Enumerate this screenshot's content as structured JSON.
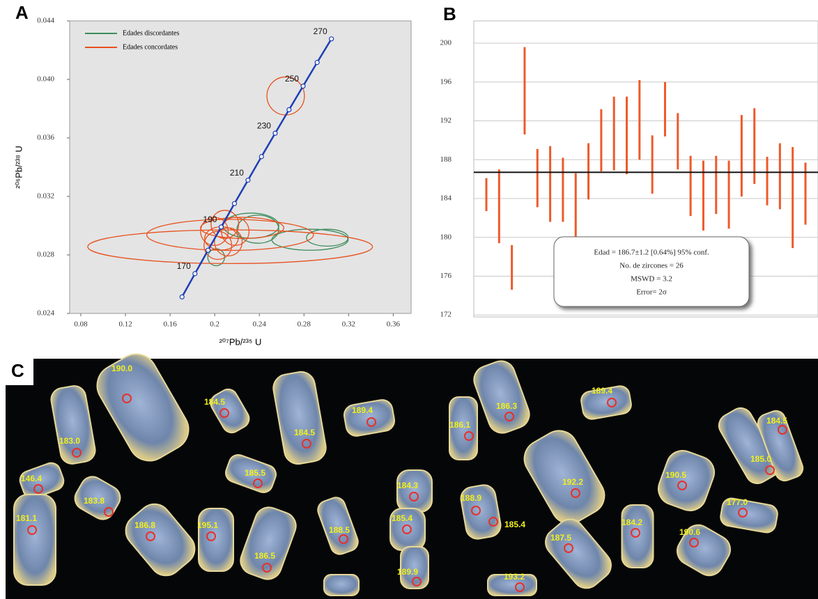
{
  "chart_data": [
    {
      "type": "concordia",
      "panel_label": "A",
      "x_label": "²⁰⁷Pb/²³⁵ U",
      "y_label": "²⁰⁶Pb/²³⁸ U",
      "xlim": [
        0.07,
        0.376
      ],
      "ylim": [
        0.024,
        0.044
      ],
      "xticks": [
        0.08,
        0.12,
        0.16,
        0.2,
        0.24,
        0.28,
        0.32,
        0.36
      ],
      "yticks": [
        0.024,
        0.028,
        0.032,
        0.036,
        {
          "value": 0.04,
          "label": "0.040"
        },
        0.044
      ],
      "legend": "top-left",
      "concordia": {
        "color": "#1d3fb5",
        "x": [
          0.1707,
          0.1823,
          0.194,
          0.2058,
          0.2177,
          0.2298,
          0.2419,
          0.2542,
          0.2666,
          0.2792,
          0.2918,
          0.3046
        ],
        "y": [
          0.02513,
          0.02672,
          0.02832,
          0.02991,
          0.03151,
          0.03311,
          0.03472,
          0.03632,
          0.03793,
          0.03954,
          0.04116,
          0.04277
        ],
        "labels": [
          null,
          170,
          null,
          190,
          null,
          210,
          null,
          230,
          null,
          250,
          null,
          270
        ]
      },
      "series": [
        {
          "name": "Edades discordantes",
          "color": "#3d8c5c",
          "x": [
            0.2325,
            0.2854,
            0.3009,
            0.2013,
            0.2387
          ],
          "y": [
            0.03,
            0.02904,
            0.02918,
            0.02784,
            0.02976
          ],
          "rx": [
            0.0249,
            0.0342,
            0.0187,
            0.0075,
            0.0187
          ],
          "ry": [
            0.00086,
            0.00072,
            0.00058,
            0.00058,
            0.00096
          ]
        },
        {
          "name": "Edades concordates",
          "color": "#e8501e",
          "x": [
            0.2138,
            0.2138,
            0.2636,
            0.1997,
            0.2122,
            0.2028,
            0.2184,
            0.2091,
            0.2246,
            0.206
          ],
          "y": [
            0.02856,
            0.02937,
            0.03887,
            0.02961,
            0.02889,
            0.02865,
            0.02961,
            0.03009,
            0.02985,
            0.02913
          ],
          "rx": [
            0.1276,
            0.0747,
            0.0168,
            0.0124,
            0.0124,
            0.0124,
            0.0124,
            0.0124,
            0.0373,
            0.015
          ],
          "ry": [
            0.00115,
            0.00106,
            0.0013,
            0.00096,
            0.00096,
            0.00096,
            0.00096,
            0.00096,
            0.00072,
            0.0008
          ]
        }
      ]
    },
    {
      "type": "errorbar",
      "panel_label": "B",
      "ylim": [
        171.8,
        202.3
      ],
      "yticks": [
        172,
        176,
        180,
        184,
        188,
        192,
        196,
        200
      ],
      "grid": true,
      "color": "#ee5a2a",
      "values": [
        184.4,
        183.2,
        176.9,
        195.1,
        186.1,
        185.5,
        184.9,
        183.3,
        186.8,
        190.0,
        190.7,
        190.5,
        192.1,
        187.5,
        193.2,
        189.9,
        185.3,
        184.3,
        185.4,
        184.4,
        188.4,
        189.4,
        185.8,
        186.3,
        184.1,
        184.5
      ],
      "errors": [
        1.7,
        3.8,
        2.3,
        4.5,
        3.0,
        3.9,
        3.3,
        3.3,
        2.9,
        3.2,
        3.8,
        4.0,
        4.1,
        3.0,
        2.8,
        2.9,
        3.1,
        3.6,
        3.0,
        3.5,
        4.2,
        3.9,
        2.5,
        3.4,
        5.2,
        3.2
      ],
      "mean": 186.7,
      "mean_color": "#111111",
      "annotation": [
        "Edad = 186.7±1.2  [0.64%]  95% conf.",
        "No. de zircones = 26",
        "MSWD = 3.2",
        "Error= 2σ"
      ]
    }
  ],
  "photo": {
    "panel_label": "C",
    "spot_labels": [
      "190.0",
      "183.0",
      "184.5",
      "184.5",
      "189.4",
      "186.1",
      "186.3",
      "189.4",
      "184.5",
      "185.0",
      "146.4",
      "185.5",
      "184.3",
      "192.2",
      "190.5",
      "183.8",
      "188.9",
      "185.4",
      "177.0",
      "181.1",
      "186.8",
      "195.1",
      "185.4",
      "188.5",
      "187.5",
      "184.2",
      "190.6",
      "186.5",
      "189.9",
      "193.2"
    ]
  }
}
